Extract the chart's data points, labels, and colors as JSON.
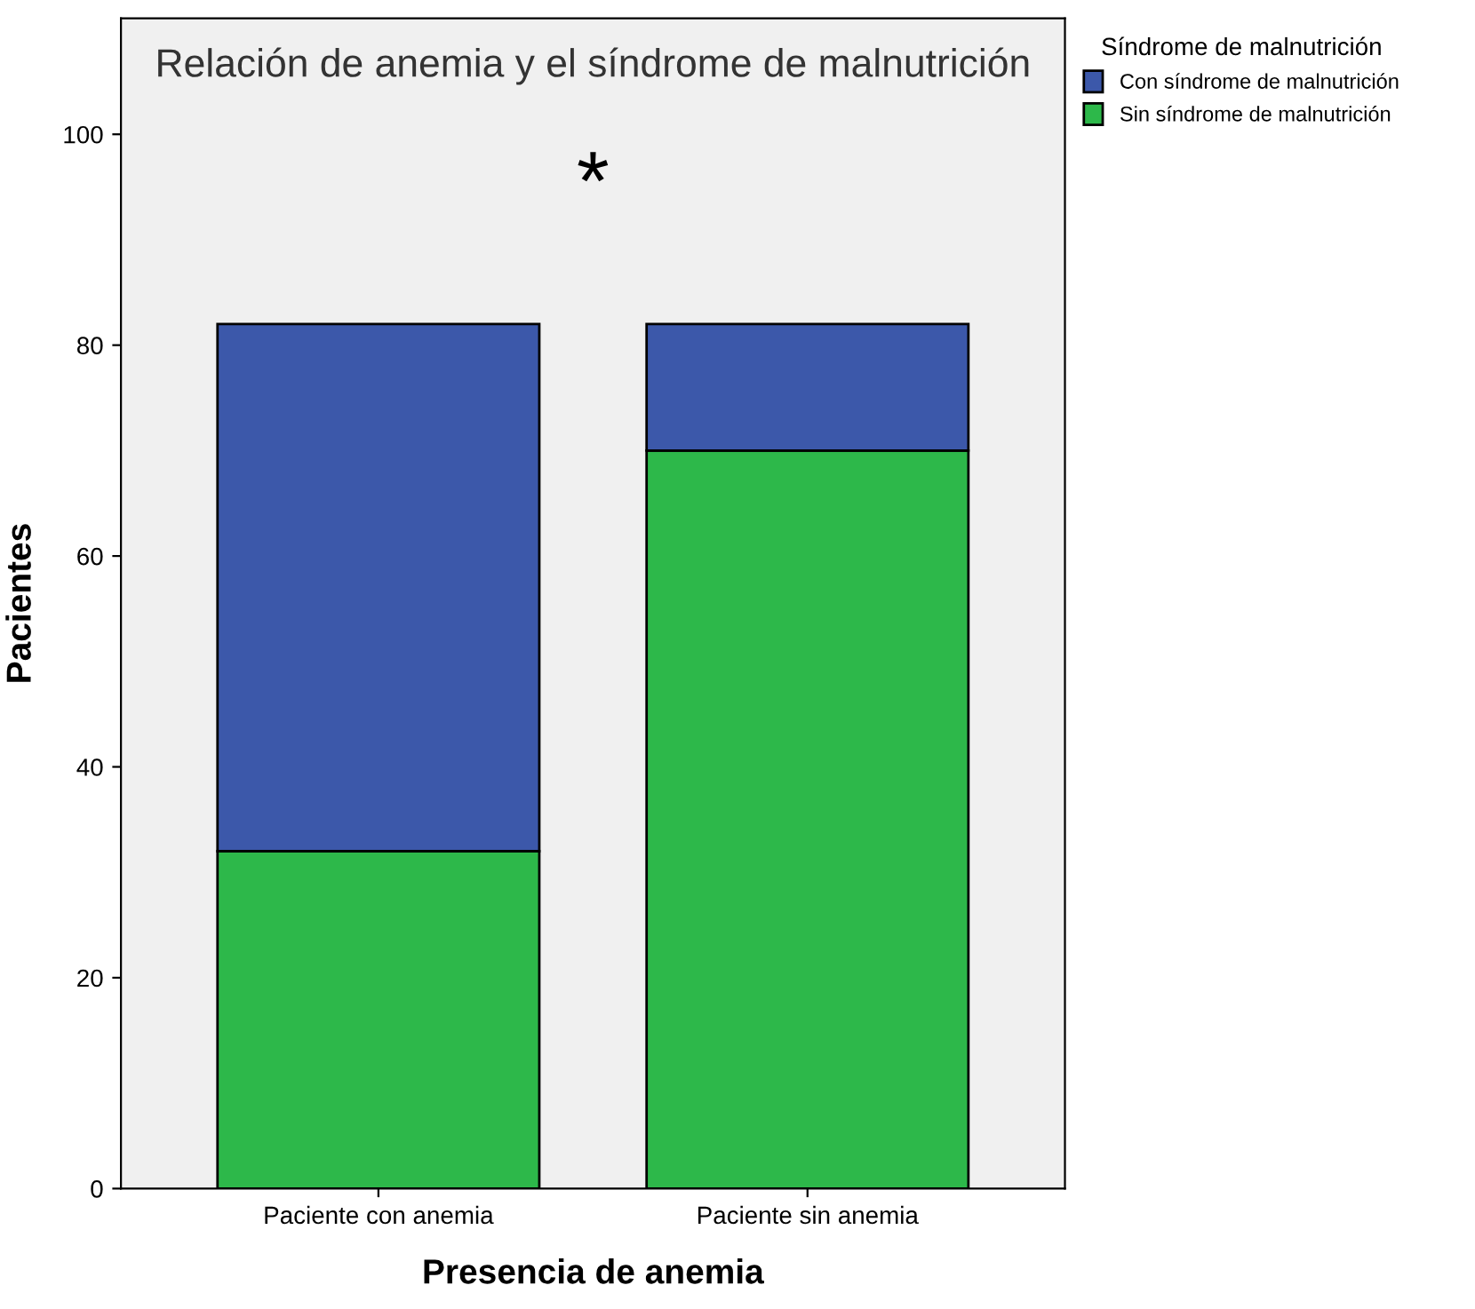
{
  "chart_data": {
    "type": "bar",
    "title": "Relación de anemia y el síndrome de malnutrición",
    "xlabel": "Presencia de anemia",
    "ylabel": "Pacientes",
    "legend_title": "Síndrome de malnutrición",
    "categories": [
      "Paciente con anemia",
      "Paciente sin anemia"
    ],
    "series": [
      {
        "name": "Sin síndrome de malnutrición",
        "color": "#2db84a",
        "values": [
          32,
          70
        ]
      },
      {
        "name": "Con síndrome de malnutrición",
        "color": "#3c58aa",
        "values": [
          50,
          12
        ]
      }
    ],
    "stacked": true,
    "ylim": [
      0,
      111
    ],
    "yticks": [
      0,
      20,
      40,
      60,
      80,
      100
    ],
    "grid": false,
    "legend": "top right",
    "annotations": [
      "*"
    ]
  }
}
